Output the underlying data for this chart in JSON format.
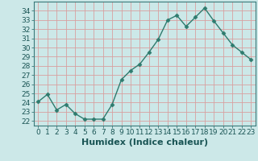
{
  "x": [
    0,
    1,
    2,
    3,
    4,
    5,
    6,
    7,
    8,
    9,
    10,
    11,
    12,
    13,
    14,
    15,
    16,
    17,
    18,
    19,
    20,
    21,
    22,
    23
  ],
  "y": [
    24.1,
    24.9,
    23.2,
    23.8,
    22.8,
    22.2,
    22.2,
    22.2,
    23.8,
    26.5,
    27.5,
    28.2,
    29.5,
    30.9,
    33.0,
    33.5,
    32.3,
    33.3,
    34.3,
    32.9,
    31.6,
    30.3,
    29.5,
    28.7
  ],
  "line_color": "#2e7b6e",
  "marker": "D",
  "marker_size": 2.5,
  "line_width": 1.0,
  "bg_color": "#cce8e8",
  "grid_color_major": "#e8b0b0",
  "grid_color_minor": "#cce8e8",
  "xlabel": "Humidex (Indice chaleur)",
  "ylim": [
    21.5,
    35.0
  ],
  "yticks": [
    22,
    23,
    24,
    25,
    26,
    27,
    28,
    29,
    30,
    31,
    32,
    33,
    34
  ],
  "xtick_labels": [
    "0",
    "1",
    "2",
    "3",
    "4",
    "5",
    "6",
    "7",
    "8",
    "9",
    "10",
    "11",
    "12",
    "13",
    "14",
    "15",
    "16",
    "17",
    "18",
    "19",
    "20",
    "21",
    "22",
    "23"
  ],
  "tick_fontsize": 6.5,
  "xlabel_fontsize": 8,
  "text_color": "#1a5555",
  "spine_color": "#3a7a7a"
}
